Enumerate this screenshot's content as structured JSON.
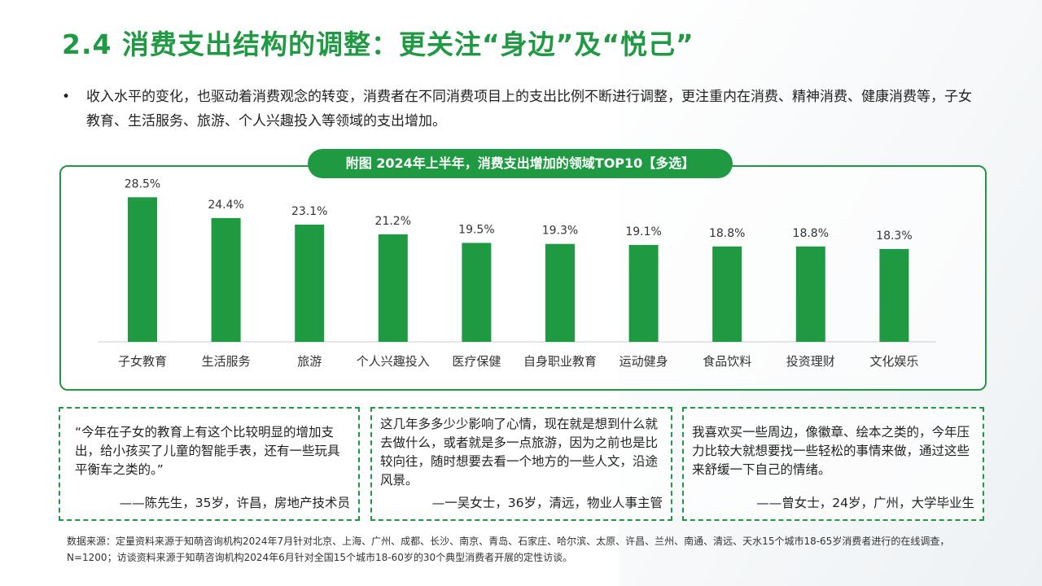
{
  "title": "2.4 消费支出结构的调整：更关注“身边”及“悦己”",
  "bullet": {
    "marker": "•",
    "text": "收入水平的变化，也驱动着消费观念的转变，消费者在不同消费项目上的支出比例不断进行调整，更注重内在消费、精神消费、健康消费等，子女教育、生活服务、旅游、个人兴趣投入等领域的支出增加。"
  },
  "chart_data": {
    "type": "bar",
    "title": "附图 2024年上半年，消费支出增加的领域TOP10【多选】",
    "categories": [
      "子女教育",
      "生活服务",
      "旅游",
      "个人兴趣投入",
      "医疗保健",
      "自身职业教育",
      "运动健身",
      "食品饮料",
      "投资理财",
      "文化娱乐"
    ],
    "values": [
      28.5,
      24.4,
      23.1,
      21.2,
      19.5,
      19.3,
      19.1,
      18.8,
      18.8,
      18.3
    ],
    "value_labels": [
      "28.5%",
      "24.4%",
      "23.1%",
      "21.2%",
      "19.5%",
      "19.3%",
      "19.1%",
      "18.8%",
      "18.8%",
      "18.3%"
    ],
    "unit": "%",
    "ylim": [
      0,
      30
    ],
    "grid": false,
    "bar_color": "#1f9a43"
  },
  "quotes": [
    {
      "text": "“今年在子女的教育上有这个比较明显的增加支出，给小孩买了儿童的智能手表，还有一些玩具平衡车之类的。”",
      "attribution": "——陈先生，35岁，许昌，房地产技术员"
    },
    {
      "text": "这几年多多少少影响了心情，现在就是想到什么就去做什么，或者就是多一点旅游，因为之前也是比较向往，随时想要去看一个地方的一些人文，沿途风景。",
      "attribution": "—一吴女士，36岁，清远，物业人事主管"
    },
    {
      "text": "我喜欢买一些周边，像徽章、绘本之类的，今年压力比较大就想要找一些轻松的事情来做，通过这些来舒缓一下自己的情绪。",
      "attribution": "——曾女士，24岁，广州，大学毕业生"
    }
  ],
  "source": "数据来源：定量资料来源于知萌咨询机构2024年7月针对北京、上海、广州、成都、长沙、南京、青岛、石家庄、哈尔滨、太原、许昌、兰州、南通、清远、天水15个城市18-65岁消费者进行的在线调查，N=1200；访谈资料来源于知萌咨询机构2024年6月针对全国15个城市18-60岁的30个典型消费者开展的定性访谈。",
  "colors": {
    "accent": "#1f9a43",
    "axis": "#cccccc",
    "text": "#222222"
  }
}
